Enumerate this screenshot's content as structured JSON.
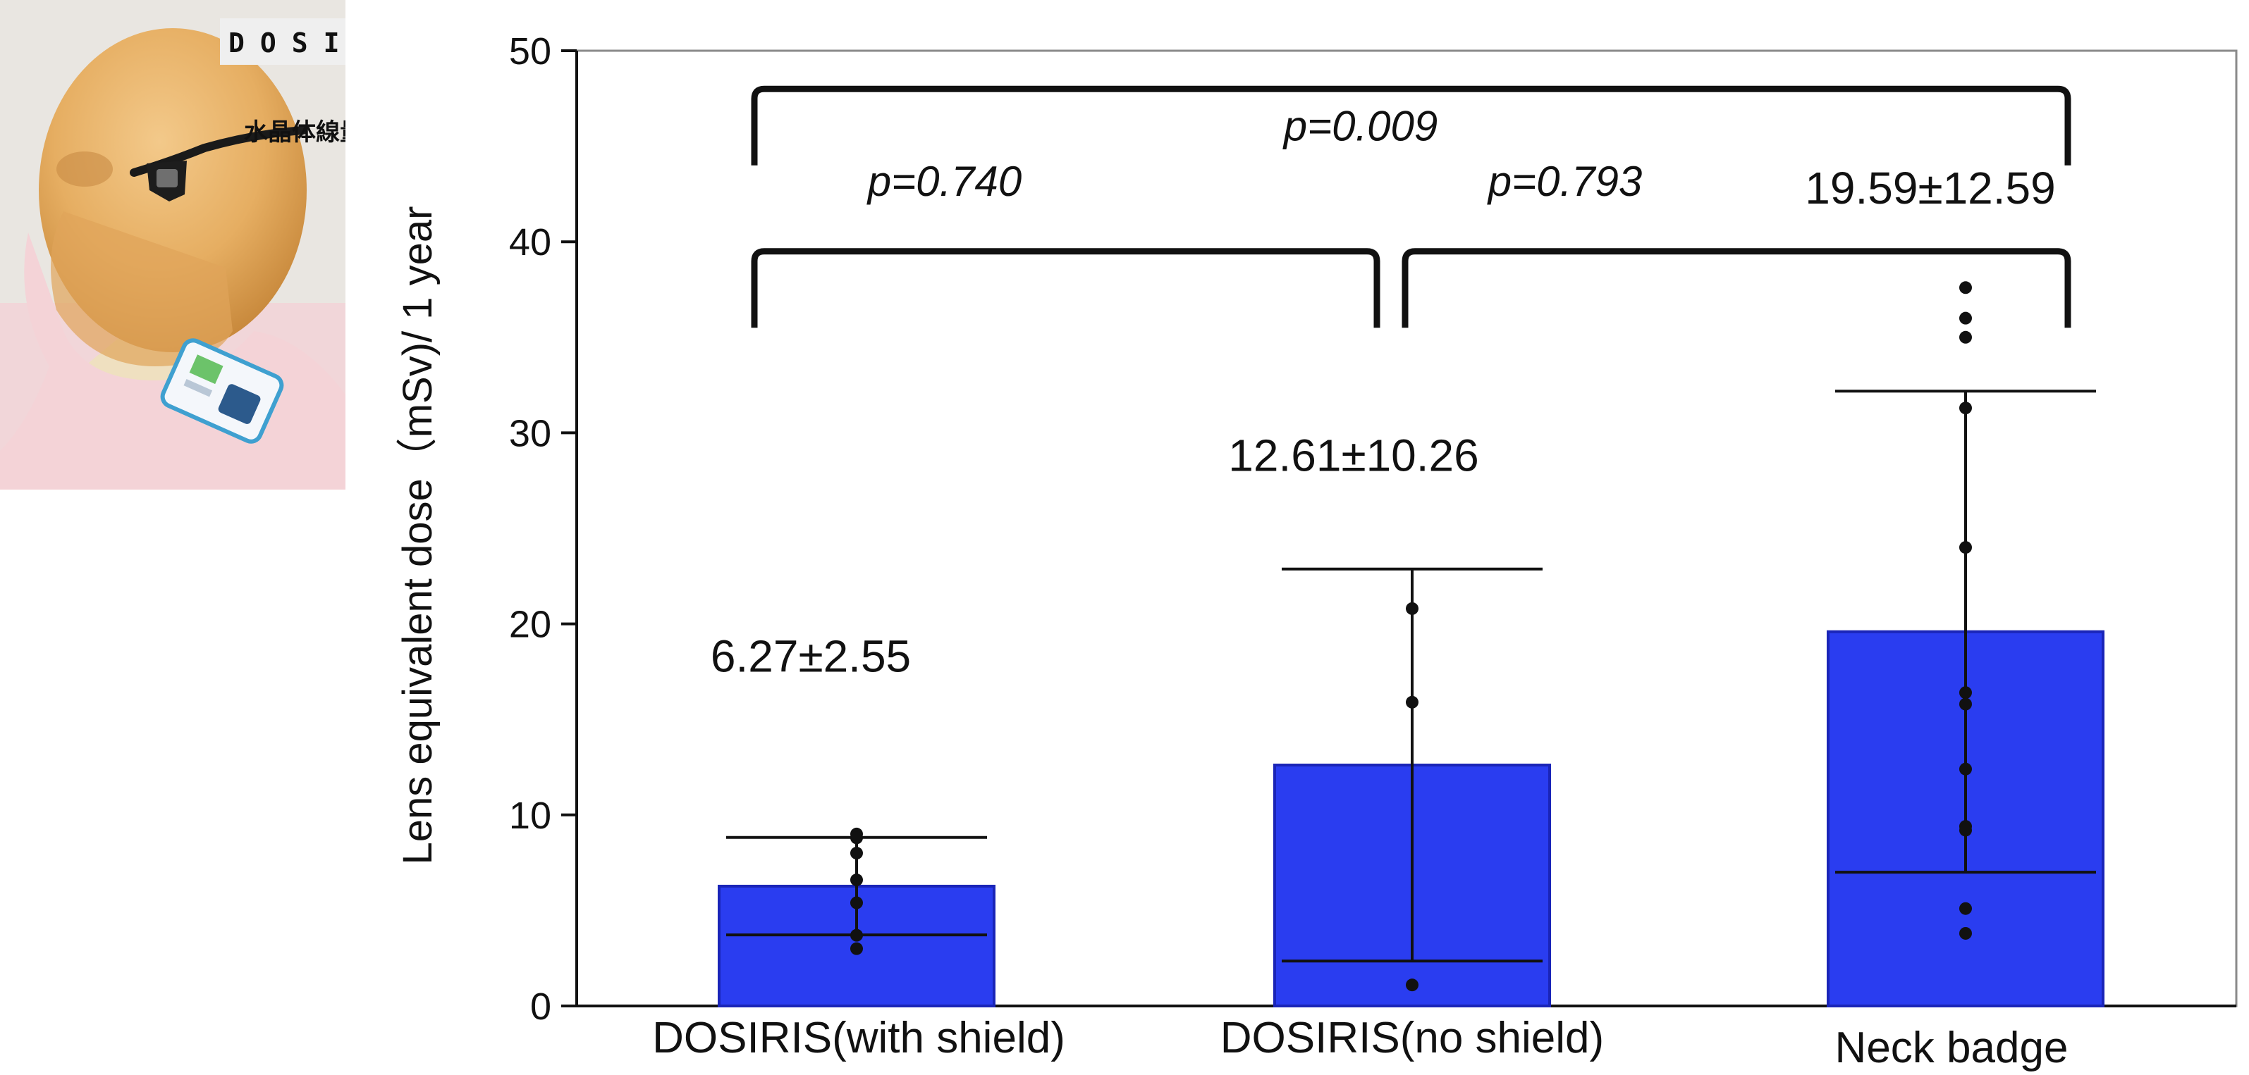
{
  "device_photo": {
    "name": "DOSIRIS",
    "subtitle": "水晶体線量計"
  },
  "chart_data": {
    "type": "bar",
    "ylabel": "Lens equivalent dose（mSv)/ 1 year",
    "xlabel": "",
    "ylim": [
      0,
      50
    ],
    "yticks": [
      0,
      10,
      20,
      30,
      40,
      50
    ],
    "categories": [
      "DOSIRIS(with shield)",
      "DOSIRIS(no shield)",
      "Neck badge"
    ],
    "values": [
      6.27,
      12.61,
      19.59
    ],
    "sd": [
      2.55,
      10.26,
      12.59
    ],
    "value_labels": [
      "6.27±2.55",
      "12.61±10.26",
      "19.59±12.59"
    ],
    "points": [
      [
        9.0,
        8.8,
        8.0,
        6.6,
        5.4,
        3.7,
        3.0
      ],
      [
        20.8,
        15.9,
        1.1
      ],
      [
        37.6,
        36.0,
        35.0,
        31.3,
        24.0,
        16.4,
        15.8,
        12.4,
        9.4,
        9.2,
        5.1,
        3.8
      ]
    ],
    "comparisons": [
      {
        "from": 0,
        "to": 2,
        "label": "p=0.009"
      },
      {
        "from": 0,
        "to": 1,
        "label": "p=0.740"
      },
      {
        "from": 1,
        "to": 2,
        "label": "p=0.793"
      }
    ],
    "colors": {
      "bar": "#2a3df0",
      "bar_edge": "#1a25b8",
      "ink": "#111111"
    },
    "grid": false
  }
}
